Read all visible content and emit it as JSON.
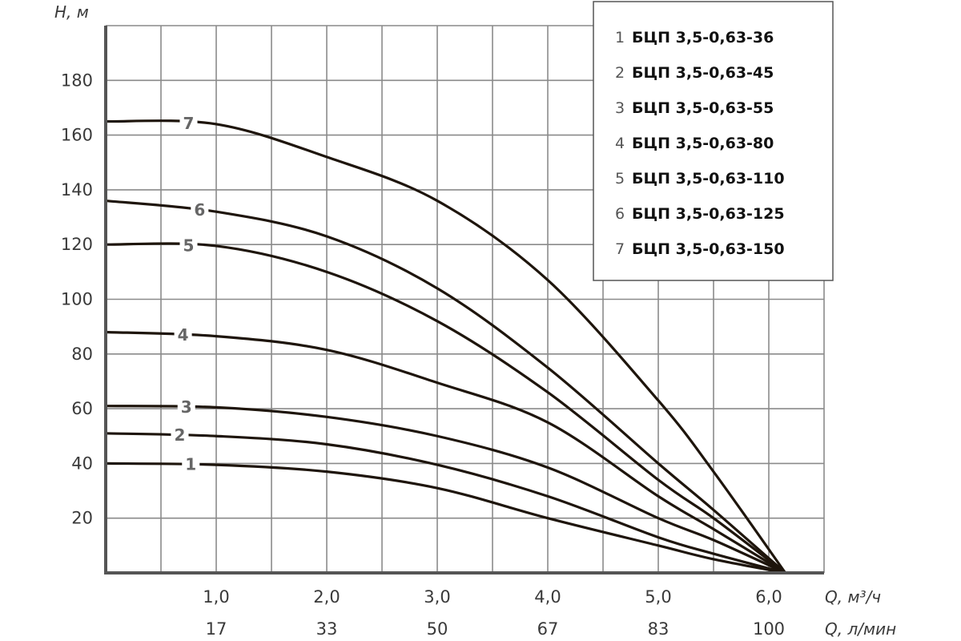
{
  "chart_data": {
    "type": "line",
    "ylabel": "H, м",
    "xlabel": "Q, м³/ч",
    "xlabel2": "Q, л/мин",
    "xlim": [
      0,
      6.5
    ],
    "ylim": [
      0,
      200
    ],
    "grid": true,
    "legend_position": "top-right",
    "yticks": [
      "20",
      "40",
      "60",
      "80",
      "100",
      "120",
      "140",
      "160",
      "180"
    ],
    "ytick_values": [
      20,
      40,
      60,
      80,
      100,
      120,
      140,
      160,
      180
    ],
    "xticks": [
      "1,0",
      "2,0",
      "3,0",
      "4,0",
      "5,0",
      "6,0"
    ],
    "xtick_values": [
      1,
      2,
      3,
      4,
      5,
      6
    ],
    "xticks2": [
      "17",
      "33",
      "50",
      "67",
      "83",
      "100"
    ],
    "line_color": "#1e150c",
    "x": [
      0,
      1,
      2,
      3,
      4,
      5,
      5.5,
      6.15
    ],
    "series": [
      {
        "label": "1",
        "name": "БЦП 3,5-0,63-36",
        "values": [
          40,
          39.5,
          37,
          31,
          20,
          10,
          5,
          0
        ]
      },
      {
        "label": "2",
        "name": "БЦП 3,5-0,63-45",
        "values": [
          51,
          50,
          47,
          39.5,
          28,
          13,
          7,
          0
        ]
      },
      {
        "label": "3",
        "name": "БЦП 3,5-0,63-55",
        "values": [
          61,
          60.5,
          57,
          50,
          38.5,
          20,
          12,
          0
        ]
      },
      {
        "label": "4",
        "name": "БЦП 3,5-0,63-80",
        "values": [
          88,
          86.5,
          81.5,
          69.5,
          55,
          28,
          16,
          0
        ]
      },
      {
        "label": "5",
        "name": "БЦП 3,5-0,63-110",
        "values": [
          120,
          119.5,
          110,
          92,
          66,
          34,
          20,
          0
        ]
      },
      {
        "label": "6",
        "name": "БЦП 3,5-0,63-125",
        "values": [
          136,
          132,
          123,
          104,
          75,
          40,
          23,
          0
        ]
      },
      {
        "label": "7",
        "name": "БЦП 3,5-0,63-150",
        "values": [
          165,
          164,
          152,
          136,
          107,
          63,
          37,
          0
        ]
      }
    ],
    "label_positions_q": [
      0.77,
      0.67,
      0.73,
      0.7,
      0.75,
      0.85,
      0.75
    ]
  }
}
